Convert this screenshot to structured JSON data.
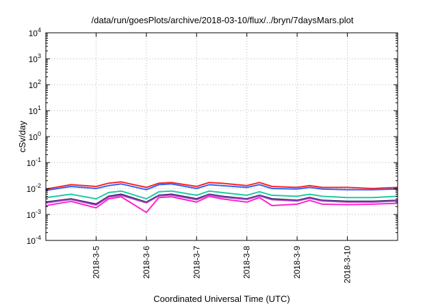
{
  "chart_data": {
    "type": "line",
    "title": "/data/run/goesPlots/archive/2018-03-10/flux/../bryn/7daysMars.plot",
    "xlabel": "Coordinated Universal Time (UTC)",
    "ylabel": "cSv/day",
    "yscale": "log",
    "ylim": [
      0.0001,
      10000
    ],
    "xlim": [
      "2018-03-04 00:00",
      "2018-03-11 00:00"
    ],
    "grid": true,
    "legend": "none",
    "x_ticks": [
      "2018-3-5",
      "2018-3-6",
      "2018-3-7",
      "2018-3-8",
      "2018-3-9",
      "2018-3-10"
    ],
    "y_ticks": [
      {
        "base": "10",
        "exp": "-4",
        "value": 0.0001
      },
      {
        "base": "10",
        "exp": "-3",
        "value": 0.001
      },
      {
        "base": "10",
        "exp": "-2",
        "value": 0.01
      },
      {
        "base": "10",
        "exp": "-1",
        "value": 0.1
      },
      {
        "base": "10",
        "exp": "0",
        "value": 1
      },
      {
        "base": "10",
        "exp": "1",
        "value": 10
      },
      {
        "base": "10",
        "exp": "2",
        "value": 100
      },
      {
        "base": "10",
        "exp": "3",
        "value": 1000
      },
      {
        "base": "10",
        "exp": "4",
        "value": 10000
      }
    ],
    "x": [
      "2018-03-04 00:00",
      "2018-03-04 12:00",
      "2018-03-05 00:00",
      "2018-03-05 06:00",
      "2018-03-05 12:00",
      "2018-03-06 00:00",
      "2018-03-06 06:00",
      "2018-03-06 12:00",
      "2018-03-07 00:00",
      "2018-03-07 06:00",
      "2018-03-07 12:00",
      "2018-03-08 00:00",
      "2018-03-08 06:00",
      "2018-03-08 12:00",
      "2018-03-09 00:00",
      "2018-03-09 06:00",
      "2018-03-09 12:00",
      "2018-03-10 00:00",
      "2018-03-10 12:00",
      "2018-03-11 00:00"
    ],
    "series": [
      {
        "color": "#ff2020",
        "values": [
          0.0095,
          0.014,
          0.012,
          0.016,
          0.018,
          0.011,
          0.016,
          0.017,
          0.012,
          0.017,
          0.016,
          0.013,
          0.017,
          0.012,
          0.011,
          0.013,
          0.011,
          0.011,
          0.01,
          0.011
        ]
      },
      {
        "color": "#3060ff",
        "values": [
          0.0085,
          0.012,
          0.01,
          0.013,
          0.015,
          0.009,
          0.014,
          0.015,
          0.01,
          0.014,
          0.013,
          0.011,
          0.014,
          0.01,
          0.0095,
          0.011,
          0.0095,
          0.009,
          0.009,
          0.0095
        ]
      },
      {
        "color": "#20c8a0",
        "values": [
          0.0045,
          0.006,
          0.004,
          0.007,
          0.008,
          0.004,
          0.0075,
          0.008,
          0.0055,
          0.008,
          0.007,
          0.0055,
          0.0075,
          0.0055,
          0.005,
          0.006,
          0.005,
          0.0045,
          0.0045,
          0.005
        ]
      },
      {
        "color": "#202060",
        "values": [
          0.003,
          0.004,
          0.0025,
          0.005,
          0.006,
          0.003,
          0.0055,
          0.006,
          0.004,
          0.006,
          0.005,
          0.004,
          0.0055,
          0.004,
          0.0035,
          0.0045,
          0.0035,
          0.0032,
          0.0032,
          0.0035
        ]
      },
      {
        "color": "#b040c0",
        "values": [
          0.0028,
          0.0038,
          0.0023,
          0.0047,
          0.0055,
          0.0028,
          0.0052,
          0.0056,
          0.0037,
          0.0057,
          0.0047,
          0.0038,
          0.0052,
          0.0037,
          0.0033,
          0.0042,
          0.0033,
          0.003,
          0.003,
          0.0033
        ]
      },
      {
        "color": "#ff20d0",
        "values": [
          0.0022,
          0.0032,
          0.0018,
          0.004,
          0.0048,
          0.0012,
          0.0045,
          0.0048,
          0.003,
          0.005,
          0.004,
          0.003,
          0.0045,
          0.0022,
          0.0025,
          0.0035,
          0.0025,
          0.0024,
          0.0025,
          0.0027
        ]
      }
    ]
  }
}
